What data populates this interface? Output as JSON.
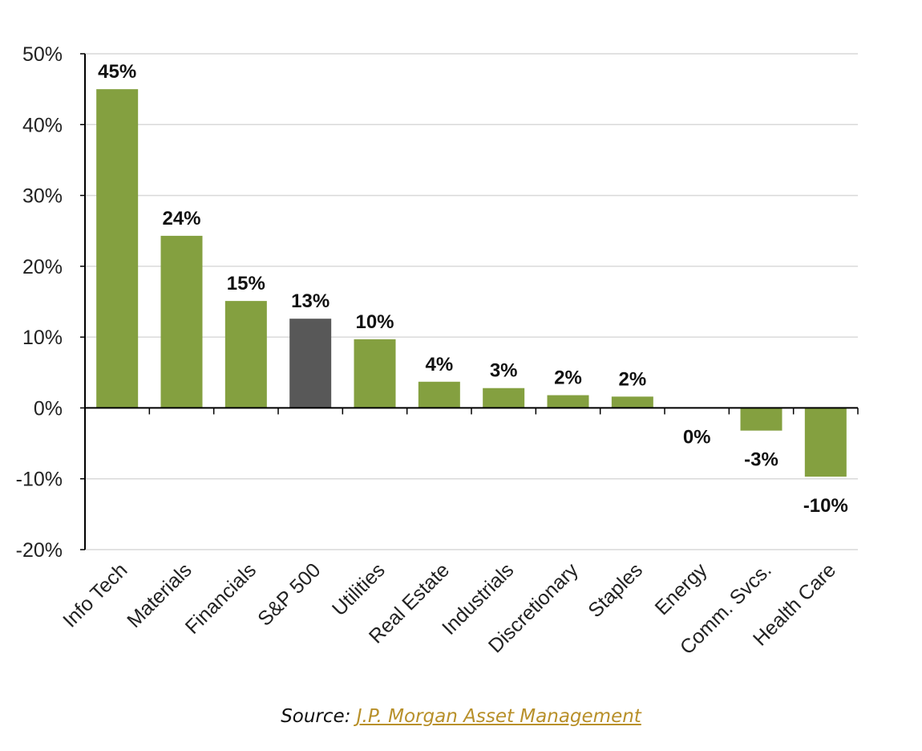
{
  "chart_data": {
    "type": "bar",
    "categories": [
      "Info Tech",
      "Materials",
      "Financials",
      "S&P 500",
      "Utilities",
      "Real Estate",
      "Industrials",
      "Discretionary",
      "Staples",
      "Energy",
      "Comm. Svcs.",
      "Health Care"
    ],
    "values": [
      45,
      24.3,
      15.1,
      12.6,
      9.7,
      3.7,
      2.8,
      1.8,
      1.6,
      0,
      -3.2,
      -9.7
    ],
    "data_labels": [
      "45%",
      "24%",
      "15%",
      "13%",
      "10%",
      "4%",
      "3%",
      "2%",
      "2%",
      "0%",
      "-3%",
      "-10%"
    ],
    "highlight_category": "S&P 500",
    "ylim": [
      -20,
      50
    ],
    "y_ticks": [
      50,
      40,
      30,
      20,
      10,
      0,
      -10,
      -20
    ],
    "y_tick_labels": [
      "50%",
      "40%",
      "30%",
      "20%",
      "10%",
      "0%",
      "-10%",
      "-20%"
    ],
    "grid": true,
    "colors": {
      "bar": "#84a040",
      "highlight": "#585858",
      "grid": "#d9d9d9",
      "axis": "#000000"
    }
  },
  "source": {
    "prefix": "Source:",
    "link_text": "J.P. Morgan Asset Management",
    "link_color": "#b8902a"
  }
}
